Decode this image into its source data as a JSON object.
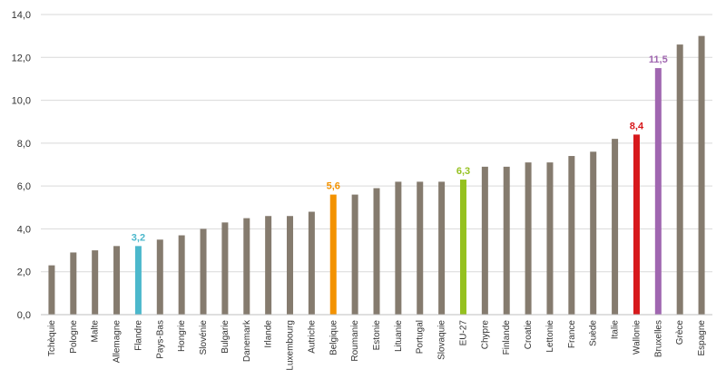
{
  "chart_data": {
    "type": "bar",
    "title": "",
    "xlabel": "",
    "ylabel": "",
    "ylim": [
      0,
      14
    ],
    "yticks": [
      0,
      2,
      4,
      6,
      8,
      10,
      12,
      14
    ],
    "ytick_labels": [
      "0,0",
      "2,0",
      "4,0",
      "6,0",
      "8,0",
      "10,0",
      "12,0",
      "14,0"
    ],
    "grid": true,
    "default_color": "#857b6e",
    "categories": [
      "Tchèquie",
      "Pologne",
      "Malte",
      "Allemagne",
      "Flandre",
      "Pays-Bas",
      "Hongrie",
      "Slovénie",
      "Bulgarie",
      "Danemark",
      "Irlande",
      "Luxembourg",
      "Autriche",
      "Belgique",
      "Roumanie",
      "Estonie",
      "Lituanie",
      "Portugal",
      "Slovaquie",
      "EU-27",
      "Chypre",
      "Finlande",
      "Croatie",
      "Lettonie",
      "France",
      "Suède",
      "Italie",
      "Wallonie",
      "Bruxelles",
      "Grèce",
      "Espagne"
    ],
    "values": [
      2.3,
      2.9,
      3.0,
      3.2,
      3.2,
      3.5,
      3.7,
      4.0,
      4.3,
      4.5,
      4.6,
      4.6,
      4.8,
      5.6,
      5.6,
      5.9,
      6.2,
      6.2,
      6.2,
      6.3,
      6.9,
      6.9,
      7.1,
      7.1,
      7.4,
      7.6,
      8.2,
      8.4,
      11.5,
      12.6,
      13.0
    ],
    "highlights": [
      {
        "category": "Flandre",
        "label": "3,2",
        "color": "#4cb8cc"
      },
      {
        "category": "Belgique",
        "label": "5,6",
        "color": "#f39200"
      },
      {
        "category": "EU-27",
        "label": "6,3",
        "color": "#95c11f"
      },
      {
        "category": "Wallonie",
        "label": "8,4",
        "color": "#d7191c"
      },
      {
        "category": "Bruxelles",
        "label": "11,5",
        "color": "#a066b0"
      }
    ]
  }
}
